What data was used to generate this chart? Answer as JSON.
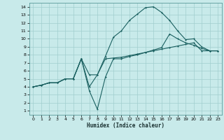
{
  "xlabel": "Humidex (Indice chaleur)",
  "xlim": [
    -0.5,
    23.5
  ],
  "ylim": [
    0.5,
    14.5
  ],
  "xticks": [
    0,
    1,
    2,
    3,
    4,
    5,
    6,
    7,
    8,
    9,
    10,
    11,
    12,
    13,
    14,
    15,
    16,
    17,
    18,
    19,
    20,
    21,
    22,
    23
  ],
  "yticks": [
    1,
    2,
    3,
    4,
    5,
    6,
    7,
    8,
    9,
    10,
    11,
    12,
    13,
    14
  ],
  "bg_color": "#c8eaea",
  "grid_color": "#a0cece",
  "line_color": "#1a6060",
  "line1_x": [
    0,
    1,
    2,
    3,
    4,
    5,
    6,
    7,
    8,
    9,
    10,
    11,
    12,
    13,
    14,
    15,
    16,
    17,
    18,
    19,
    20,
    21,
    22,
    23
  ],
  "line1_y": [
    4.0,
    4.2,
    4.5,
    4.5,
    5.0,
    5.0,
    7.5,
    5.5,
    5.5,
    7.5,
    7.6,
    7.7,
    7.9,
    8.1,
    8.3,
    8.5,
    8.7,
    8.9,
    9.1,
    9.3,
    9.5,
    8.5,
    8.5,
    8.5
  ],
  "line2_x": [
    0,
    1,
    2,
    3,
    4,
    5,
    6,
    7,
    8,
    9,
    10,
    11,
    12,
    13,
    14,
    15,
    16,
    17,
    18,
    19,
    20,
    21,
    22,
    23
  ],
  "line2_y": [
    4.0,
    4.2,
    4.5,
    4.5,
    5.0,
    5.0,
    7.5,
    4.0,
    5.5,
    7.8,
    10.2,
    11.0,
    12.3,
    13.1,
    13.9,
    14.0,
    13.3,
    12.3,
    11.0,
    9.9,
    10.0,
    9.0,
    8.5,
    8.5
  ],
  "line3_x": [
    0,
    1,
    2,
    3,
    4,
    5,
    6,
    7,
    8,
    9,
    10,
    11,
    12,
    13,
    14,
    15,
    16,
    17,
    18,
    19,
    20,
    21,
    22,
    23
  ],
  "line3_y": [
    4.0,
    4.2,
    4.5,
    4.5,
    5.0,
    5.0,
    7.5,
    3.5,
    1.2,
    5.2,
    7.5,
    7.5,
    7.8,
    8.0,
    8.3,
    8.6,
    8.9,
    10.6,
    10.0,
    9.5,
    9.2,
    8.8,
    8.5,
    8.5
  ]
}
